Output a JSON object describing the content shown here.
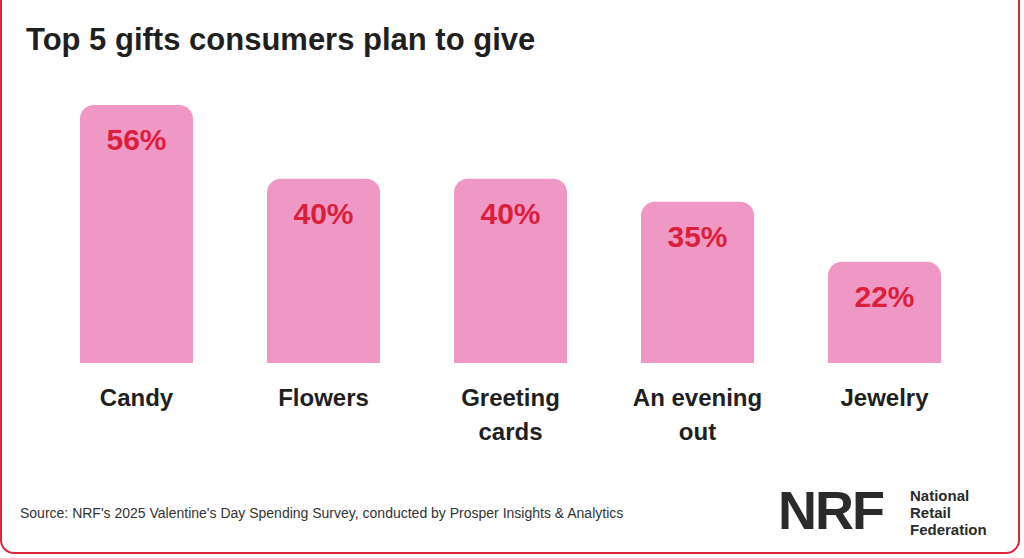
{
  "chart_data": {
    "type": "bar",
    "title": "Top 5 gifts consumers plan to give",
    "categories": [
      "Candy",
      "Flowers",
      "Greeting cards",
      "An evening out",
      "Jewelry"
    ],
    "values": [
      56,
      40,
      40,
      35,
      22
    ],
    "value_labels": [
      "56%",
      "40%",
      "40%",
      "35%",
      "22%"
    ],
    "color": "#ef97c5",
    "ylim": [
      0,
      56
    ],
    "yticks": [
      0,
      56
    ],
    "grid": false,
    "data_labels": true,
    "tick_labels": "x",
    "source": "Source: NRF's 2025 Valentine's Day Spending Survey, conducted by Prosper Insights & Analytics",
    "annotations": [
      "NRF",
      "National Retail Federation"
    ]
  }
}
